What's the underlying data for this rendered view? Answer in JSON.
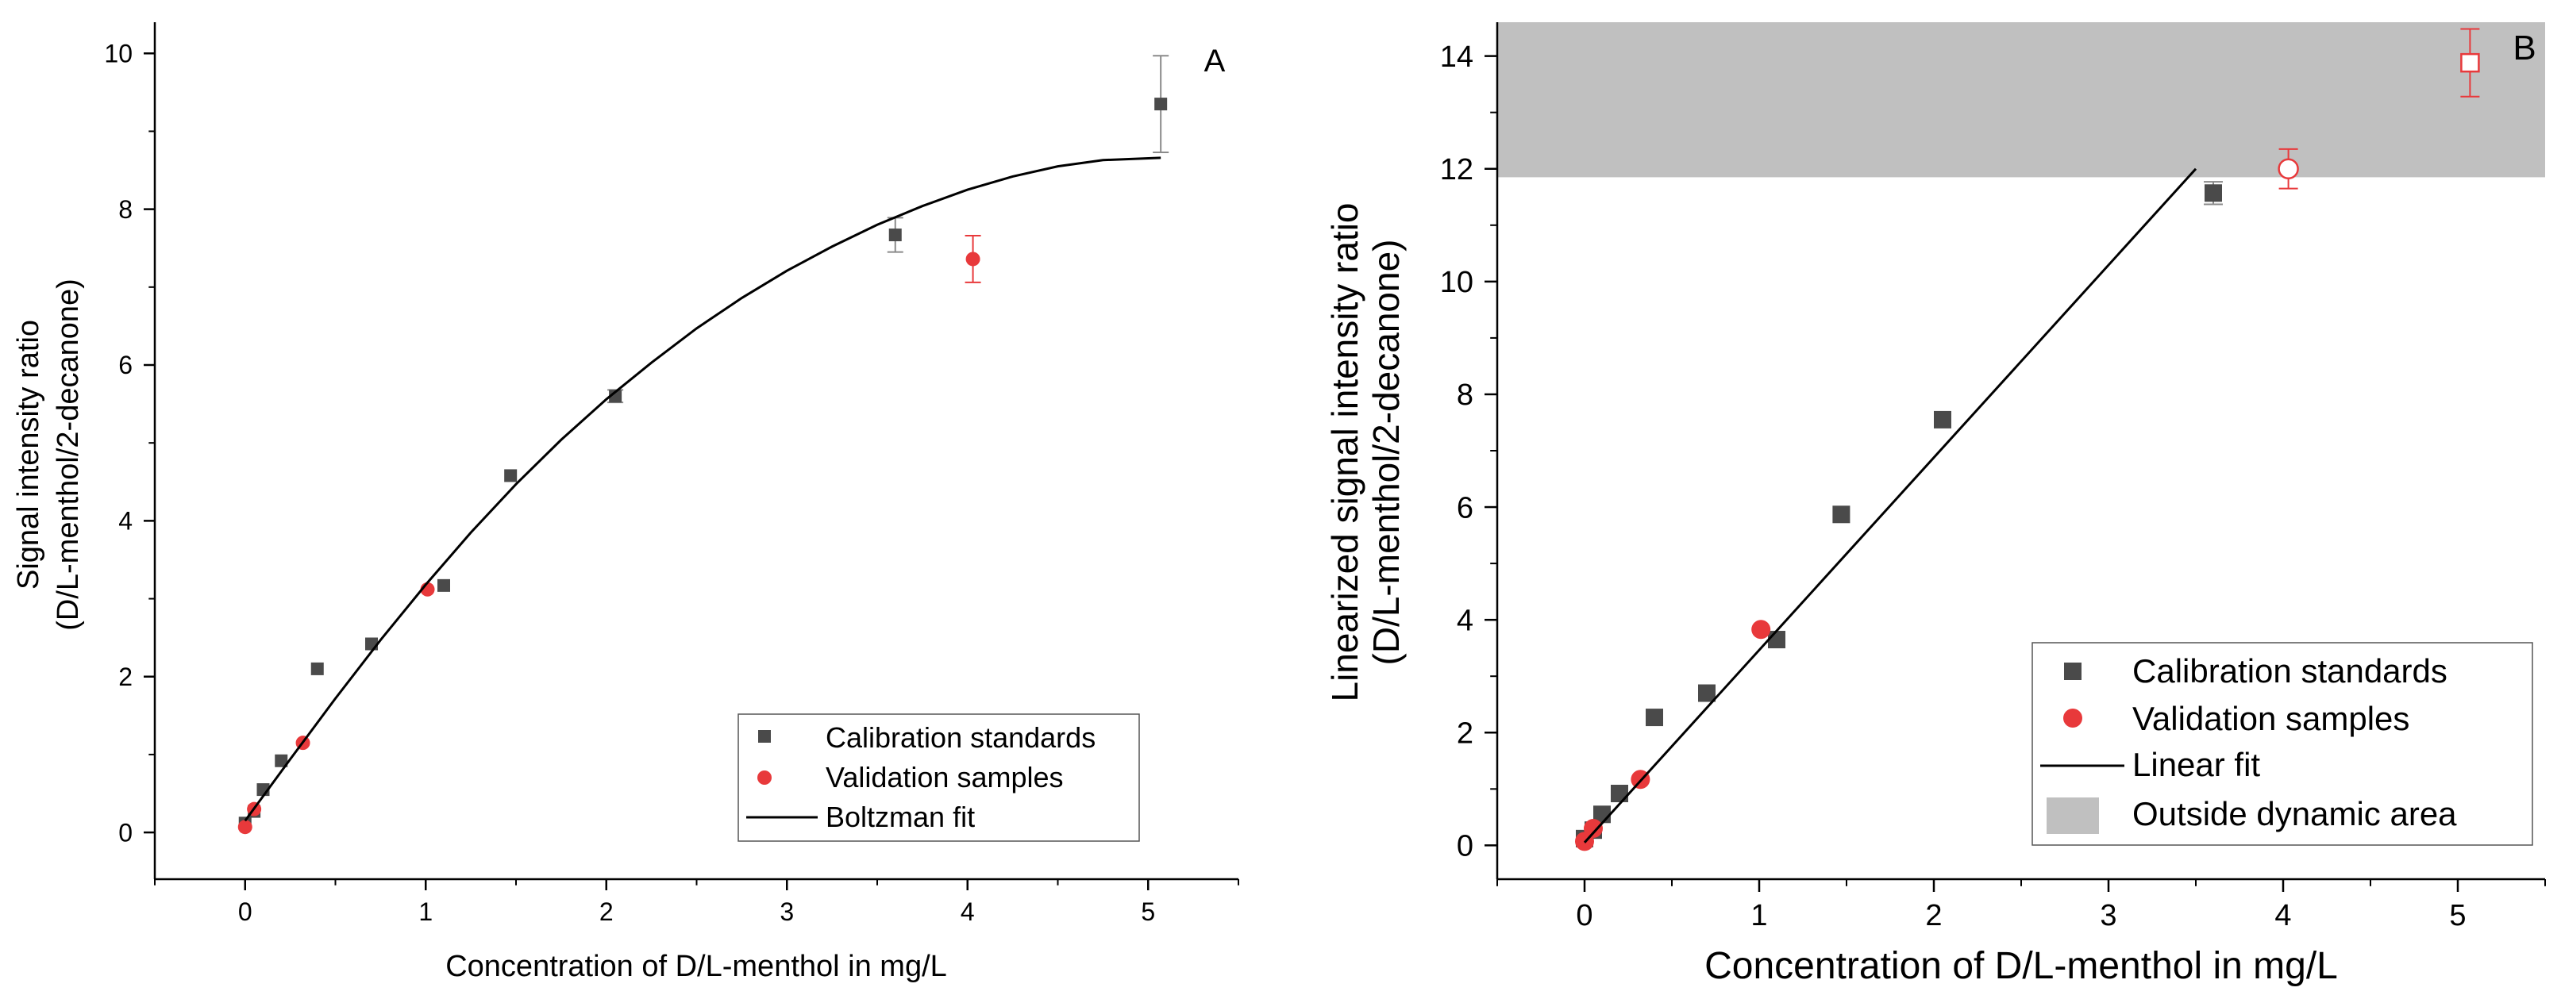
{
  "colors": {
    "calibration": "#4a4a4a",
    "validation": "#e8393b",
    "fit_line": "#000000",
    "shaded": "#c0c0c0",
    "error_bar_cal": "#8a8a8a",
    "error_bar_val": "#e8393b"
  },
  "chart_data": [
    {
      "panel_label": "A",
      "type": "scatter",
      "title": "",
      "xlabel": "Concentration of D/L-menthol in mg/L",
      "ylabel_lines": [
        "Signal intensity ratio",
        "(D/L-menthol/2-decanone)"
      ],
      "xlim": [
        -0.5,
        5.5
      ],
      "ylim": [
        -0.6,
        10.4
      ],
      "xticks": [
        0,
        1,
        2,
        3,
        4,
        5
      ],
      "xtick_labels": [
        "0",
        "1",
        "2",
        "3",
        "4",
        "5"
      ],
      "yticks": [
        0,
        2,
        4,
        6,
        8,
        10
      ],
      "ytick_labels": [
        "0",
        "2",
        "4",
        "6",
        "8",
        "10"
      ],
      "legend": [
        "Calibration standards",
        "Validation samples",
        "Boltzman fit"
      ],
      "legend_position": "bottom-right",
      "series": [
        {
          "name": "Calibration standards",
          "marker": "square",
          "x": [
            0.0,
            0.05,
            0.1,
            0.2,
            0.4,
            0.7,
            1.1,
            1.47,
            2.05,
            3.6,
            5.07
          ],
          "y": [
            0.12,
            0.27,
            0.55,
            0.92,
            2.1,
            2.42,
            3.17,
            4.58,
            5.6,
            7.67,
            9.35
          ],
          "err": [
            0,
            0,
            0,
            0,
            0,
            0,
            0,
            0,
            0.08,
            0.22,
            0.62
          ]
        },
        {
          "name": "Validation samples",
          "marker": "circle",
          "x": [
            0.0,
            0.05,
            0.32,
            1.01,
            4.03
          ],
          "y": [
            0.07,
            0.3,
            1.15,
            3.12,
            7.36
          ],
          "err": [
            0,
            0,
            0,
            0,
            0.3
          ]
        },
        {
          "name": "Boltzman fit",
          "marker": "line",
          "x": [
            0,
            0.25,
            0.5,
            0.75,
            1.0,
            1.25,
            1.5,
            1.75,
            2.0,
            2.25,
            2.5,
            2.75,
            3.0,
            3.25,
            3.5,
            3.75,
            4.0,
            4.25,
            4.5,
            4.75,
            5.07
          ],
          "y": [
            0.15,
            0.94,
            1.72,
            2.47,
            3.18,
            3.85,
            4.47,
            5.04,
            5.56,
            6.03,
            6.47,
            6.86,
            7.21,
            7.52,
            7.8,
            8.04,
            8.25,
            8.42,
            8.55,
            8.63,
            8.66
          ]
        }
      ]
    },
    {
      "panel_label": "B",
      "type": "scatter",
      "title": "",
      "xlabel": "Concentration of D/L-menthol in mg/L",
      "ylabel_lines": [
        "Linearized signal intensity ratio",
        "(D/L-menthol/2-decanone)"
      ],
      "xlim": [
        -0.5,
        5.5
      ],
      "ylim": [
        -0.6,
        14.6
      ],
      "xticks": [
        0,
        1,
        2,
        3,
        4,
        5
      ],
      "xtick_labels": [
        "0",
        "1",
        "2",
        "3",
        "4",
        "5"
      ],
      "yticks": [
        0,
        2,
        4,
        6,
        8,
        10,
        12,
        14
      ],
      "ytick_labels": [
        "0",
        "2",
        "4",
        "6",
        "8",
        "10",
        "12",
        "14"
      ],
      "shaded_region": {
        "y_from": 11.85,
        "y_to": 14.6,
        "label": "Outside dynamic area"
      },
      "legend": [
        "Calibration standards",
        "Validation samples",
        "Linear fit",
        "Outside dynamic area"
      ],
      "legend_position": "bottom-right",
      "series": [
        {
          "name": "Calibration standards",
          "marker": "square",
          "x": [
            0.0,
            0.05,
            0.1,
            0.2,
            0.4,
            0.7,
            1.1,
            1.47,
            2.05,
            3.6
          ],
          "y": [
            0.12,
            0.27,
            0.55,
            0.92,
            2.27,
            2.7,
            3.65,
            5.87,
            7.55,
            11.57
          ],
          "err": [
            0,
            0,
            0,
            0,
            0,
            0,
            0,
            0,
            0,
            0.2
          ]
        },
        {
          "name": "Validation samples",
          "marker": "circle",
          "x": [
            0.0,
            0.05,
            0.32,
            1.01
          ],
          "y": [
            0.07,
            0.3,
            1.17,
            3.83
          ],
          "err": [
            0,
            0,
            0,
            0
          ]
        },
        {
          "name": "Outside dynamic area points",
          "marker": "open",
          "x": [
            4.03,
            5.07
          ],
          "y": [
            12.0,
            13.88
          ],
          "shapes": [
            "circle",
            "square"
          ],
          "err": [
            0.35,
            0.6
          ]
        },
        {
          "name": "Linear fit",
          "marker": "line",
          "x": [
            0,
            3.5
          ],
          "y": [
            0.05,
            12.0
          ]
        }
      ]
    }
  ]
}
